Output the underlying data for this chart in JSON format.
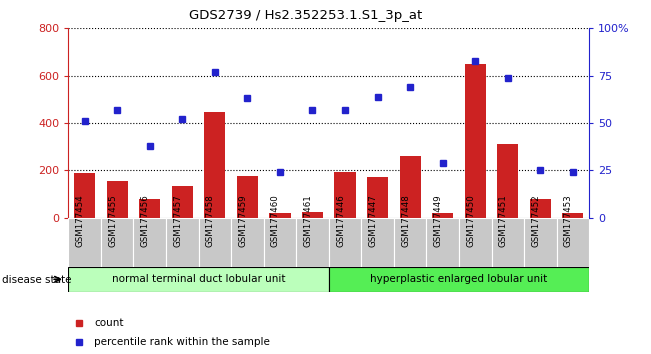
{
  "title": "GDS2739 / Hs2.352253.1.S1_3p_at",
  "samples": [
    "GSM177454",
    "GSM177455",
    "GSM177456",
    "GSM177457",
    "GSM177458",
    "GSM177459",
    "GSM177460",
    "GSM177461",
    "GSM177446",
    "GSM177447",
    "GSM177448",
    "GSM177449",
    "GSM177450",
    "GSM177451",
    "GSM177452",
    "GSM177453"
  ],
  "counts": [
    190,
    155,
    80,
    135,
    445,
    175,
    20,
    25,
    195,
    170,
    260,
    20,
    650,
    310,
    80,
    20
  ],
  "percentiles": [
    51,
    57,
    38,
    52,
    77,
    63,
    24,
    57,
    57,
    64,
    69,
    29,
    83,
    74,
    25,
    24
  ],
  "group1_label": "normal terminal duct lobular unit",
  "group2_label": "hyperplastic enlarged lobular unit",
  "group1_count": 8,
  "group2_count": 8,
  "bar_color": "#cc2222",
  "dot_color": "#2222cc",
  "ylim_left": [
    0,
    800
  ],
  "ylim_right": [
    0,
    100
  ],
  "yticks_left": [
    0,
    200,
    400,
    600,
    800
  ],
  "yticks_right": [
    0,
    25,
    50,
    75,
    100
  ],
  "group1_color": "#bbffbb",
  "group2_color": "#55ee55",
  "disease_state_label": "disease state",
  "legend_count_label": "count",
  "legend_pct_label": "percentile rank within the sample",
  "title_color": "#000000",
  "tick_label_color_left": "#cc2222",
  "tick_label_color_right": "#2222cc",
  "gray_box_color": "#c8c8c8"
}
